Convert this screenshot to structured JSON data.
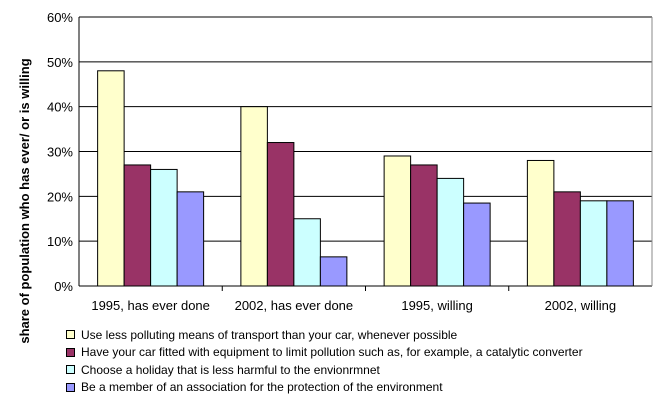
{
  "chart_data": {
    "type": "bar",
    "title": "",
    "xlabel": "",
    "ylabel": "share of population who has ever/ or is willing",
    "ylim": [
      0,
      60
    ],
    "yticks": [
      "0%",
      "10%",
      "20%",
      "30%",
      "40%",
      "50%",
      "60%"
    ],
    "grid": true,
    "legend_position": "bottom",
    "categories": [
      "1995, has ever done",
      "2002, has ever done",
      "1995, willing",
      "2002, willing"
    ],
    "series": [
      {
        "name": "Use less polluting means of transport than your car, whenever possible",
        "color": "#ffffcc",
        "values": [
          48,
          40,
          29,
          28
        ]
      },
      {
        "name": "Have your car fitted with equipment to limit pollution such as, for example, a catalytic converter",
        "color": "#993366",
        "values": [
          27,
          32,
          27,
          21
        ]
      },
      {
        "name": "Choose a holiday that is less harmful to the envionrmnet",
        "color": "#ccffff",
        "values": [
          26,
          15,
          24,
          19
        ]
      },
      {
        "name": "Be a member of an association for the protection of the environment",
        "color": "#9999ff",
        "values": [
          21,
          6.5,
          18.5,
          19
        ]
      }
    ]
  }
}
